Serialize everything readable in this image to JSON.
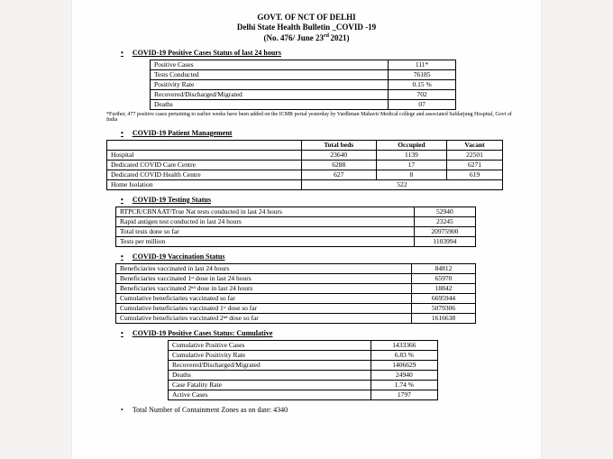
{
  "header": {
    "l1": "GOVT. OF NCT OF DELHI",
    "l2": "Delhi State Health Bulletin _COVID -19",
    "l3_a": "(No. 476/ June 23",
    "l3_sup": "rd ",
    "l3_b": "2021)"
  },
  "s1": {
    "title": "COVID-19 Positive Cases Status of last 24 hours",
    "rows": [
      [
        "Positive Cases",
        "111*"
      ],
      [
        "Tests Conducted",
        "76185"
      ],
      [
        "Positivity Rate",
        "0.15 %"
      ],
      [
        "Recovered/Discharged/Migrated",
        "702"
      ],
      [
        "Deaths",
        "07"
      ]
    ],
    "note": "*Further, 477 positive cases pertaining to earlier weeks have been added on the ICMR portal yesterday by Vardhman Mahavir Medical college and associated Safdarjung Hospital, Govt of India"
  },
  "s2": {
    "title": "COVID-19 Patient Management",
    "head": [
      "",
      "Total beds",
      "Occupied",
      "Vacant"
    ],
    "rows": [
      [
        "Hospital",
        "23640",
        "1139",
        "22501"
      ],
      [
        "Dedicated COVID Care Centre",
        "6288",
        "17",
        "6271"
      ],
      [
        "Dedicated COVID Health Centre",
        "627",
        "8",
        "619"
      ]
    ],
    "iso_l": "Home Isolation",
    "iso_v": "522"
  },
  "s3": {
    "title": "COVID-19 Testing Status",
    "rows": [
      [
        "RTPCR/CBNAAT/True Nat tests conducted in last 24 hours",
        "52940"
      ],
      [
        "Rapid antigen test conducted in last 24 hours",
        "23245"
      ],
      [
        "Total tests done so far",
        "20975900"
      ],
      [
        "Tests per million",
        "1103994"
      ]
    ]
  },
  "s4": {
    "title": "COVID-19 Vaccination Status",
    "rows": [
      [
        "Beneficiaries vaccinated in last 24 hours",
        "84812"
      ],
      [
        "Beneficiaries vaccinated 1ˢᵗ dose in last 24 hours",
        "65970"
      ],
      [
        "Beneficiaries vaccinated 2ⁿᵈ dose in last 24 hours",
        "18842"
      ],
      [
        "Cumulative beneficiaries vaccinated so far",
        "6695944"
      ],
      [
        "Cumulative beneficiaries vaccinated 1ˢᵗ dose so far",
        "5079306"
      ],
      [
        "Cumulative beneficiaries vaccinated 2ⁿᵈ dose so far",
        "1616638"
      ]
    ]
  },
  "s5": {
    "title": "COVID-19 Positive Cases Status: Cumulative",
    "rows": [
      [
        "Cumulative Positive Cases",
        "1433366"
      ],
      [
        "Cumulative Positivity Rate",
        "6.83 %"
      ],
      [
        "Recovered/Discharged/Migrated",
        "1406629"
      ],
      [
        "Deaths",
        "24940"
      ],
      [
        "Case Fatality Rate",
        "1.74 %"
      ],
      [
        "Active Cases",
        "1797"
      ]
    ]
  },
  "foot": "Total Number of Containment Zones as on date:  4340"
}
